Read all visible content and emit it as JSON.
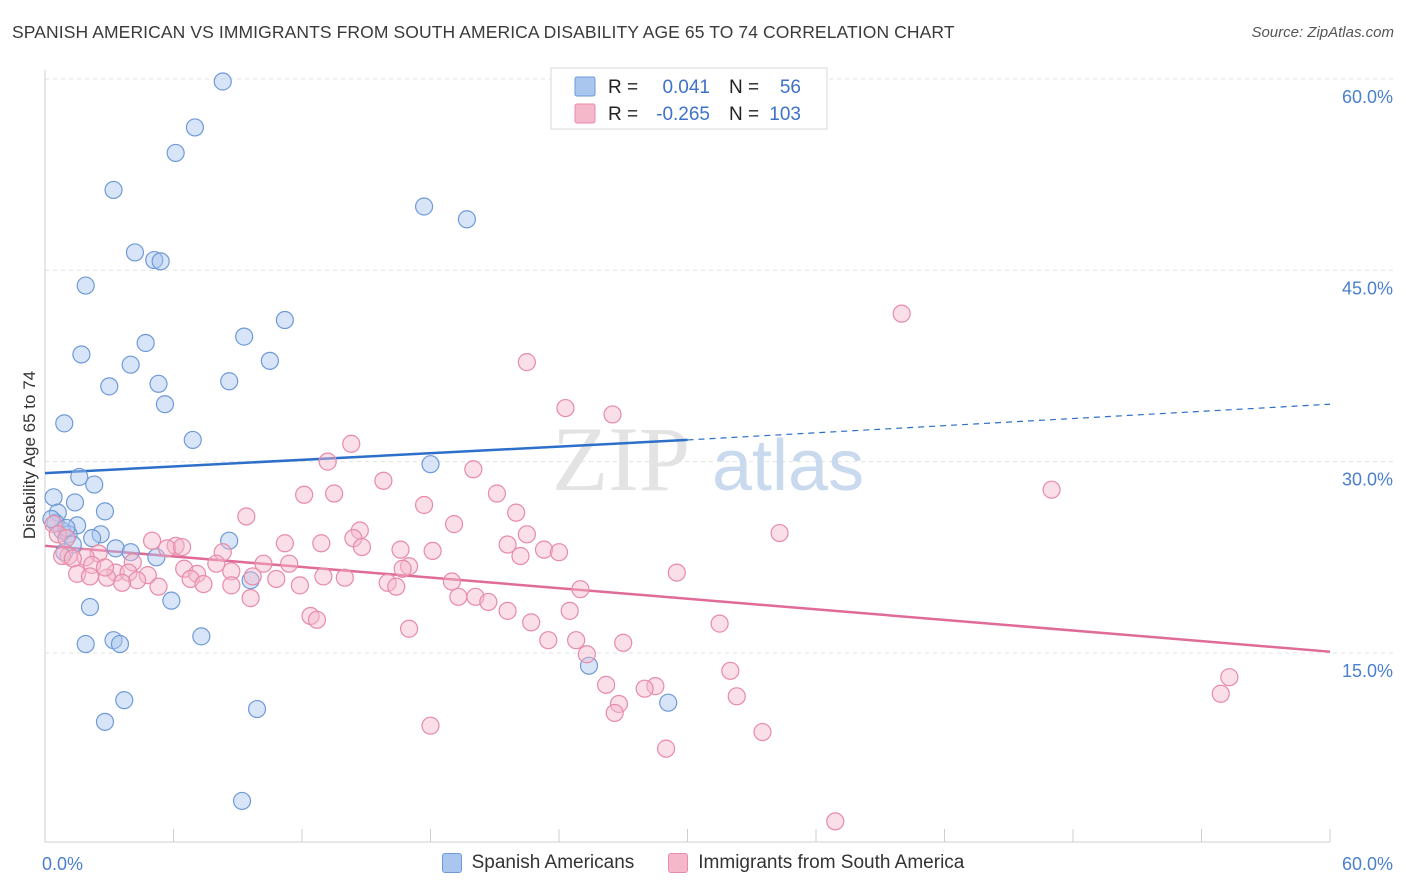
{
  "title": "SPANISH AMERICAN VS IMMIGRANTS FROM SOUTH AMERICA DISABILITY AGE 65 TO 74 CORRELATION CHART",
  "source": "Source: ZipAtlas.com",
  "watermark": {
    "zip": "ZIP",
    "atlas": "atlas"
  },
  "chart_data": {
    "type": "scatter",
    "ylabel": "Disability Age 65 to 74",
    "xlim": [
      0,
      60
    ],
    "ylim": [
      0,
      62
    ],
    "x_tick_labels": [
      {
        "value": 0,
        "label": "0.0%"
      },
      {
        "value": 60,
        "label": "60.0%"
      }
    ],
    "y_tick_labels": [
      {
        "value": 15,
        "label": "15.0%"
      },
      {
        "value": 30,
        "label": "30.0%"
      },
      {
        "value": 45,
        "label": "45.0%"
      },
      {
        "value": 60,
        "label": "60.0%"
      }
    ],
    "legend": [
      {
        "r_label": "R =",
        "r_value": "0.041",
        "n_label": "N =",
        "n_value": "56"
      },
      {
        "r_label": "R =",
        "r_value": "-0.265",
        "n_label": "N =",
        "n_value": "103"
      }
    ],
    "colors": {
      "blue_fill": "#a9c6ef",
      "blue_stroke": "#6f9ad8",
      "blue_line": "#2d6fc9",
      "pink_fill": "#f5b8cb",
      "pink_stroke": "#e88aa8",
      "pink_line": "#e06b97"
    },
    "series": [
      {
        "name": "Spanish Americans",
        "color": "#a9c6ef",
        "trend": {
          "x1": 0,
          "y1": 29.1,
          "x2": 30,
          "y2": 31.7,
          "dash_to_x": 60,
          "dash_to_y": 34.5
        },
        "points": [
          [
            8.3,
            59.8
          ],
          [
            7.0,
            56.2
          ],
          [
            6.1,
            54.2
          ],
          [
            3.2,
            51.3
          ],
          [
            17.7,
            50.0
          ],
          [
            19.7,
            49.0
          ],
          [
            4.2,
            46.4
          ],
          [
            5.1,
            45.8
          ],
          [
            5.4,
            45.7
          ],
          [
            1.9,
            43.8
          ],
          [
            11.2,
            41.1
          ],
          [
            9.3,
            39.8
          ],
          [
            4.7,
            39.3
          ],
          [
            1.7,
            38.4
          ],
          [
            10.5,
            37.9
          ],
          [
            4.0,
            37.6
          ],
          [
            8.6,
            36.3
          ],
          [
            5.3,
            36.1
          ],
          [
            3.0,
            35.9
          ],
          [
            5.6,
            34.5
          ],
          [
            0.9,
            33.0
          ],
          [
            6.9,
            31.7
          ],
          [
            18.0,
            29.8
          ],
          [
            1.6,
            28.8
          ],
          [
            2.3,
            28.2
          ],
          [
            0.4,
            27.2
          ],
          [
            1.4,
            26.8
          ],
          [
            0.6,
            26.0
          ],
          [
            2.8,
            26.1
          ],
          [
            0.5,
            25.2
          ],
          [
            1.5,
            25.0
          ],
          [
            0.8,
            24.6
          ],
          [
            1.1,
            24.3
          ],
          [
            2.6,
            24.3
          ],
          [
            2.2,
            24.0
          ],
          [
            8.6,
            23.8
          ],
          [
            1.3,
            23.5
          ],
          [
            3.3,
            23.2
          ],
          [
            0.9,
            22.9
          ],
          [
            4.0,
            22.9
          ],
          [
            5.2,
            22.5
          ],
          [
            9.6,
            20.7
          ],
          [
            5.9,
            19.1
          ],
          [
            2.1,
            18.6
          ],
          [
            7.3,
            16.3
          ],
          [
            3.2,
            16.0
          ],
          [
            1.9,
            15.7
          ],
          [
            3.5,
            15.7
          ],
          [
            25.4,
            14.0
          ],
          [
            3.7,
            11.3
          ],
          [
            29.1,
            11.1
          ],
          [
            9.9,
            10.6
          ],
          [
            2.8,
            9.6
          ],
          [
            9.2,
            3.4
          ],
          [
            1.0,
            24.8
          ],
          [
            0.3,
            25.5
          ]
        ]
      },
      {
        "name": "Immigrants from South America",
        "color": "#f5b8cb",
        "trend": {
          "x1": 0,
          "y1": 23.4,
          "x2": 60,
          "y2": 15.1
        },
        "points": [
          [
            40.0,
            41.6
          ],
          [
            22.5,
            37.8
          ],
          [
            24.3,
            34.2
          ],
          [
            26.5,
            33.7
          ],
          [
            14.3,
            31.4
          ],
          [
            13.2,
            30.0
          ],
          [
            20.0,
            29.4
          ],
          [
            47.0,
            27.8
          ],
          [
            15.8,
            28.5
          ],
          [
            12.1,
            27.4
          ],
          [
            13.5,
            27.5
          ],
          [
            21.1,
            27.5
          ],
          [
            17.7,
            26.6
          ],
          [
            22.0,
            26.0
          ],
          [
            9.4,
            25.7
          ],
          [
            19.1,
            25.1
          ],
          [
            14.7,
            24.6
          ],
          [
            34.3,
            24.4
          ],
          [
            22.5,
            24.3
          ],
          [
            14.4,
            24.0
          ],
          [
            5.0,
            23.8
          ],
          [
            11.2,
            23.6
          ],
          [
            21.6,
            23.5
          ],
          [
            6.1,
            23.4
          ],
          [
            5.7,
            23.2
          ],
          [
            14.8,
            23.3
          ],
          [
            23.3,
            23.1
          ],
          [
            16.6,
            23.1
          ],
          [
            18.1,
            23.0
          ],
          [
            24.0,
            22.9
          ],
          [
            8.3,
            22.9
          ],
          [
            2.5,
            22.8
          ],
          [
            1.1,
            22.6
          ],
          [
            0.8,
            22.6
          ],
          [
            1.9,
            22.5
          ],
          [
            22.2,
            22.6
          ],
          [
            1.3,
            22.4
          ],
          [
            10.2,
            22.0
          ],
          [
            11.4,
            22.0
          ],
          [
            4.1,
            22.1
          ],
          [
            8.0,
            22.0
          ],
          [
            2.2,
            21.9
          ],
          [
            17.0,
            21.8
          ],
          [
            16.7,
            21.6
          ],
          [
            6.5,
            21.6
          ],
          [
            8.7,
            21.4
          ],
          [
            3.3,
            21.3
          ],
          [
            3.9,
            21.3
          ],
          [
            4.8,
            21.1
          ],
          [
            7.1,
            21.2
          ],
          [
            1.5,
            21.2
          ],
          [
            2.1,
            21.0
          ],
          [
            29.5,
            21.3
          ],
          [
            13.0,
            21.0
          ],
          [
            14.0,
            20.9
          ],
          [
            9.7,
            21.0
          ],
          [
            10.8,
            20.8
          ],
          [
            6.8,
            20.8
          ],
          [
            2.9,
            20.9
          ],
          [
            19.0,
            20.6
          ],
          [
            4.3,
            20.7
          ],
          [
            3.6,
            20.5
          ],
          [
            8.7,
            20.3
          ],
          [
            16.0,
            20.5
          ],
          [
            7.4,
            20.4
          ],
          [
            11.9,
            20.3
          ],
          [
            16.4,
            20.2
          ],
          [
            25.0,
            20.0
          ],
          [
            5.3,
            20.2
          ],
          [
            19.3,
            19.4
          ],
          [
            20.1,
            19.4
          ],
          [
            9.6,
            19.3
          ],
          [
            20.7,
            19.0
          ],
          [
            21.6,
            18.3
          ],
          [
            24.5,
            18.3
          ],
          [
            12.4,
            17.9
          ],
          [
            12.7,
            17.6
          ],
          [
            22.7,
            17.4
          ],
          [
            31.5,
            17.3
          ],
          [
            17.0,
            16.9
          ],
          [
            23.5,
            16.0
          ],
          [
            24.8,
            16.0
          ],
          [
            27.0,
            15.8
          ],
          [
            25.3,
            14.9
          ],
          [
            32.0,
            13.6
          ],
          [
            55.3,
            13.1
          ],
          [
            26.2,
            12.5
          ],
          [
            28.5,
            12.4
          ],
          [
            28.0,
            12.2
          ],
          [
            54.9,
            11.8
          ],
          [
            32.3,
            11.6
          ],
          [
            26.8,
            11.0
          ],
          [
            26.6,
            10.3
          ],
          [
            18.0,
            9.3
          ],
          [
            33.5,
            8.8
          ],
          [
            29.0,
            7.5
          ],
          [
            36.9,
            1.8
          ],
          [
            0.4,
            25.1
          ],
          [
            0.6,
            24.3
          ],
          [
            1.0,
            24.0
          ],
          [
            2.8,
            21.7
          ],
          [
            12.9,
            23.6
          ],
          [
            6.4,
            23.3
          ]
        ]
      }
    ]
  },
  "bottom_legend": [
    {
      "label": "Spanish Americans"
    },
    {
      "label": "Immigrants from South America"
    }
  ]
}
